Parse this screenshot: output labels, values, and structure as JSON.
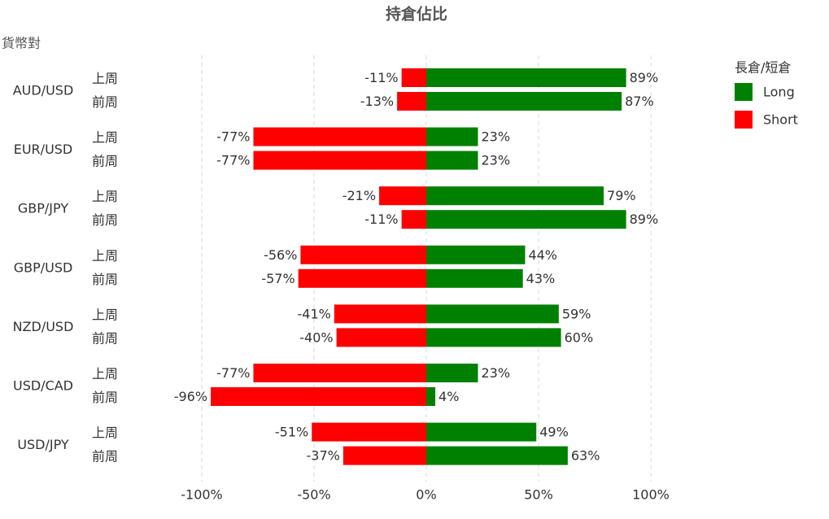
{
  "chart_data": {
    "type": "diverging-bar",
    "title": "持倉佔比",
    "y_axis_label": "貨幣對",
    "categories": [
      "AUD/USD",
      "EUR/USD",
      "GBP/JPY",
      "GBP/USD",
      "NZD/USD",
      "USD/CAD",
      "USD/JPY"
    ],
    "periods": [
      "上周",
      "前周"
    ],
    "legend_title": "長倉/短倉",
    "legend_position": "right",
    "series": [
      {
        "name": "Long",
        "color": "#008000",
        "values": [
          [
            89,
            87
          ],
          [
            23,
            23
          ],
          [
            79,
            89
          ],
          [
            44,
            43
          ],
          [
            59,
            60
          ],
          [
            23,
            4
          ],
          [
            49,
            63
          ]
        ],
        "value_labels": [
          [
            "89%",
            "87%"
          ],
          [
            "23%",
            "23%"
          ],
          [
            "79%",
            "89%"
          ],
          [
            "44%",
            "43%"
          ],
          [
            "59%",
            "60%"
          ],
          [
            "23%",
            "4%"
          ],
          [
            "49%",
            "63%"
          ]
        ]
      },
      {
        "name": "Short",
        "color": "#ff0000",
        "values": [
          [
            -11,
            -13
          ],
          [
            -77,
            -77
          ],
          [
            -21,
            -11
          ],
          [
            -56,
            -57
          ],
          [
            -41,
            -40
          ],
          [
            -77,
            -96
          ],
          [
            -51,
            -37
          ]
        ],
        "value_labels": [
          [
            "-11%",
            "-13%"
          ],
          [
            "-77%",
            "-77%"
          ],
          [
            "-21%",
            "-11%"
          ],
          [
            "-56%",
            "-57%"
          ],
          [
            "-41%",
            "-40%"
          ],
          [
            "-77%",
            "-96%"
          ],
          [
            "-51%",
            "-37%"
          ]
        ]
      }
    ],
    "xlim": [
      -100,
      100
    ],
    "xticks": [
      {
        "value": -100,
        "label": "-100%"
      },
      {
        "value": -50,
        "label": "-50%"
      },
      {
        "value": 0,
        "label": "0%"
      },
      {
        "value": 50,
        "label": "50%"
      },
      {
        "value": 100,
        "label": "100%"
      }
    ],
    "grid": true
  }
}
